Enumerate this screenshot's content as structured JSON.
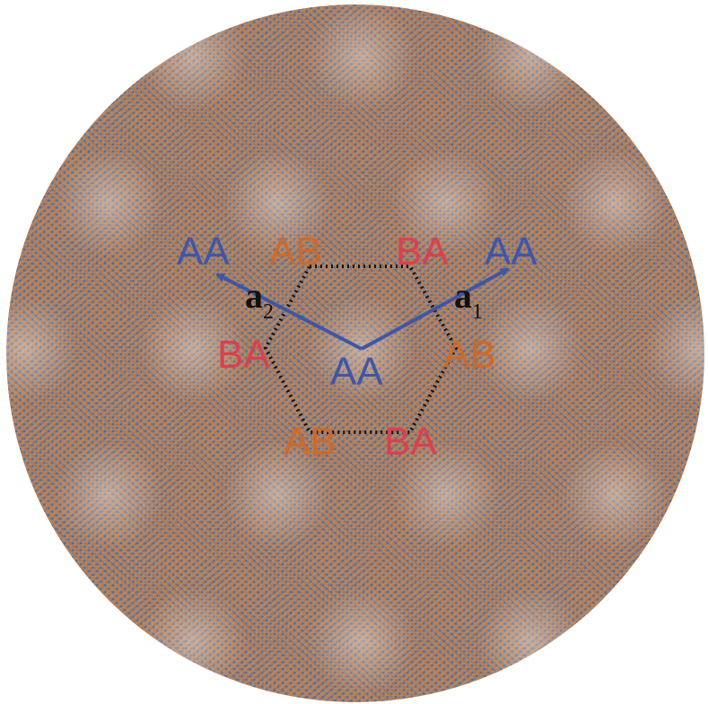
{
  "colors": {
    "background": "#ffffff",
    "lattice_disk": "#9a7a66",
    "atom_layer_1": "#c8743a",
    "atom_layer_2": "#4a6fa5",
    "label_AA": "#3f56a8",
    "label_AB": "#cc6a2c",
    "label_BA": "#d9414f",
    "vector_arrow": "#3f56a8",
    "hexagon_outline": "#111111"
  },
  "labels": {
    "aa_center": "AA",
    "aa_left": "AA",
    "aa_right": "AA",
    "ab_top": "AB",
    "ba_top": "BA",
    "ba_left": "BA",
    "ab_right": "AB",
    "ab_bottom": "AB",
    "ba_bottom": "BA"
  },
  "vectors": {
    "a1": {
      "symbol": "a",
      "subscript": "1"
    },
    "a2": {
      "symbol": "a",
      "subscript": "2"
    }
  }
}
